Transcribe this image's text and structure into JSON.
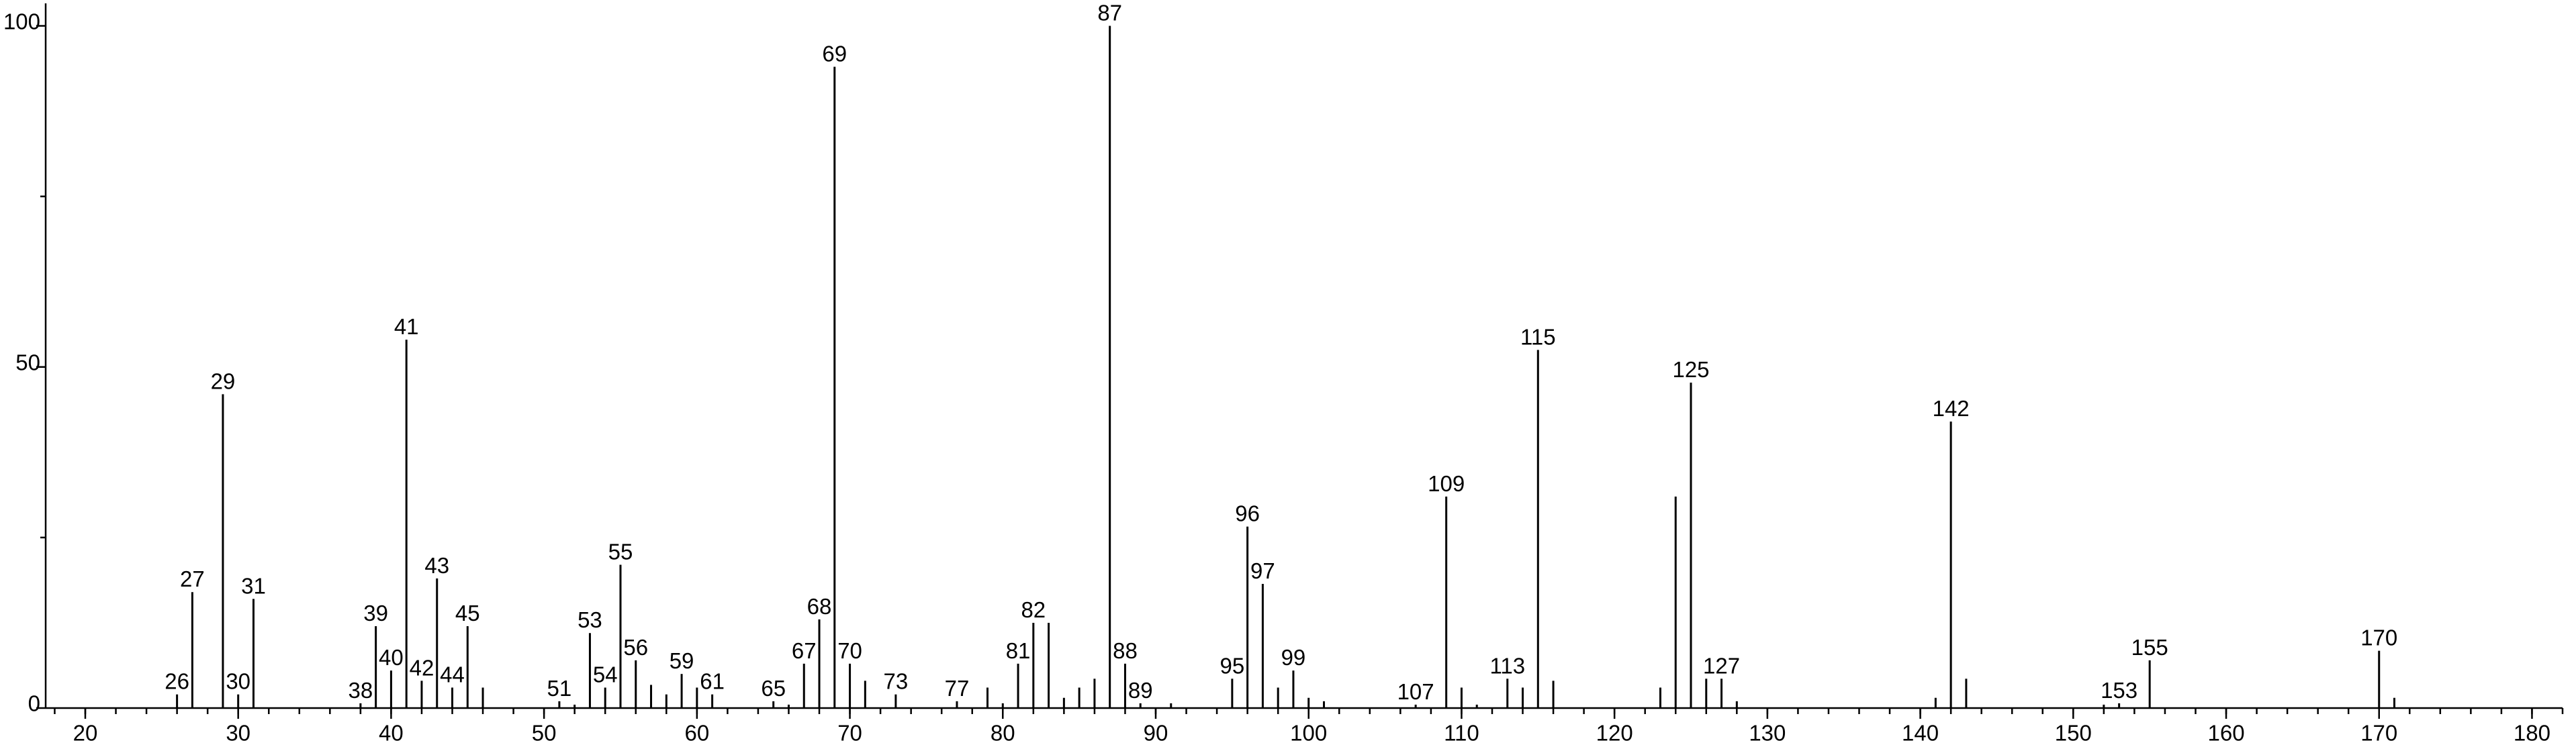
{
  "chart_data": {
    "type": "bar",
    "x": [
      26,
      27,
      29,
      30,
      31,
      38,
      39,
      40,
      41,
      42,
      43,
      44,
      45,
      46,
      51,
      52,
      53,
      54,
      55,
      56,
      57,
      58,
      59,
      60,
      61,
      65,
      66,
      67,
      68,
      69,
      70,
      71,
      73,
      77,
      79,
      80,
      81,
      82,
      83,
      84,
      85,
      86,
      87,
      88,
      89,
      91,
      95,
      96,
      97,
      98,
      99,
      100,
      101,
      107,
      109,
      110,
      111,
      113,
      114,
      115,
      116,
      123,
      124,
      125,
      126,
      127,
      128,
      141,
      142,
      143,
      152,
      153,
      155,
      170,
      171
    ],
    "values": [
      2,
      17,
      46,
      2,
      16,
      0.7,
      12,
      5.5,
      54,
      4,
      19,
      3,
      12,
      3,
      1,
      0.5,
      11,
      3,
      21,
      7,
      3.4,
      2,
      5,
      3,
      2,
      1,
      0.5,
      6.5,
      13,
      94,
      6.5,
      4,
      2,
      1,
      3,
      0.7,
      6.5,
      12.5,
      12.5,
      1.5,
      3,
      4.3,
      100,
      6.5,
      0.7,
      0.7,
      4.3,
      26.6,
      18.2,
      3,
      5.5,
      1.5,
      1,
      0.5,
      31,
      3,
      0.5,
      4.3,
      3,
      52.5,
      4,
      3,
      31,
      47.7,
      4.3,
      4.3,
      1,
      1.5,
      42,
      4.3,
      0.5,
      0.7,
      7,
      8.4,
      1.5
    ],
    "labels": [
      "26",
      "27",
      "29",
      "30",
      "31",
      "38",
      "39",
      "40",
      "41",
      "42",
      "43",
      "44",
      "45",
      null,
      "51",
      null,
      "53",
      "54",
      "55",
      "56",
      null,
      null,
      "59",
      null,
      "61",
      "65",
      null,
      "67",
      "68",
      "69",
      "70",
      null,
      "73",
      "77",
      null,
      null,
      "81",
      "82",
      null,
      null,
      null,
      null,
      "87",
      "88",
      "89",
      null,
      "95",
      "96",
      "97",
      null,
      "99",
      null,
      null,
      "107",
      "109",
      null,
      null,
      "113",
      null,
      "115",
      null,
      null,
      null,
      "125",
      null,
      "127",
      null,
      null,
      "142",
      null,
      null,
      "153",
      "155",
      "170",
      null
    ],
    "color": "#000000",
    "xlim": [
      17.41,
      182.0
    ],
    "xticks": [
      20,
      30,
      40,
      50,
      60,
      70,
      80,
      90,
      100,
      110,
      120,
      130,
      140,
      150,
      160,
      170,
      180
    ],
    "xminor_step": 2,
    "ylim": [
      0,
      103.3
    ],
    "yticks": [
      0,
      50,
      100
    ],
    "yminor": [
      25,
      75
    ]
  }
}
